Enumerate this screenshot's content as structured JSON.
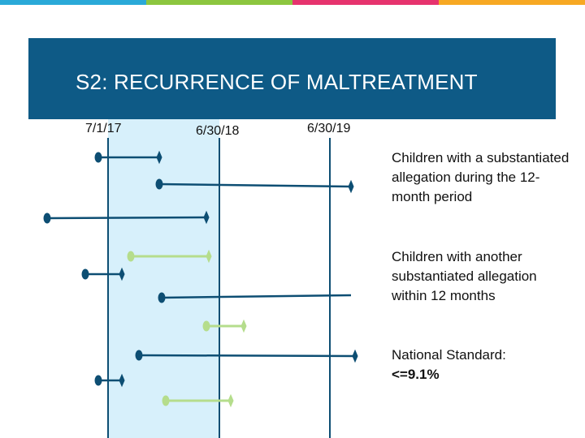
{
  "title": "S2: RECURRENCE OF MALTREATMENT",
  "dates": [
    "7/1/17",
    "6/30/18",
    "6/30/19"
  ],
  "legend": {
    "substantiated": "Children with a substantiated allegation during the 12-month period",
    "recurrence": "Children with another substantiated allegation within 12 months",
    "standard_label": "National Standard:",
    "standard_value": "<=9.1%"
  },
  "colors": {
    "banner": "#0e5a86",
    "period_fill": "#d7f0fb",
    "dark_line": "#0d4e73",
    "light_line": "#b5dd8c",
    "top_stripes": [
      "#2aa9d8",
      "#8cc63f",
      "#e6336e",
      "#f7a823"
    ]
  },
  "markers": [
    "dot-marker",
    "diamond-marker"
  ]
}
